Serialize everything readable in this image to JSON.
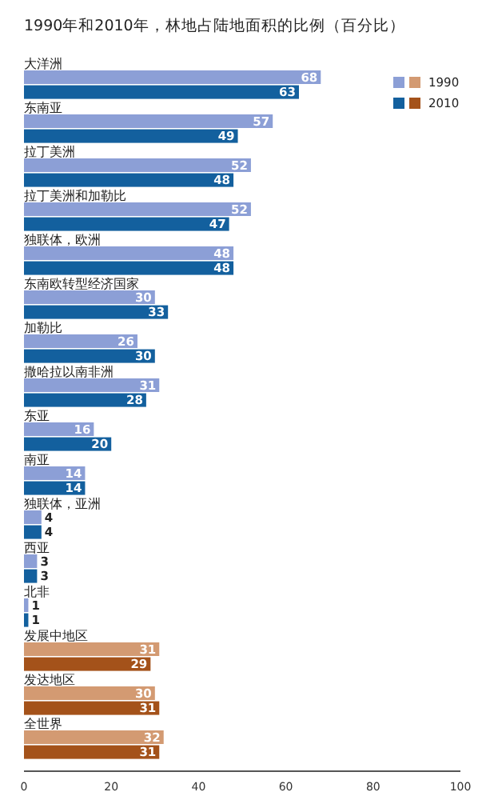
{
  "chart_data": {
    "type": "bar",
    "orientation": "horizontal",
    "title": "1990年和2010年，林地占陆地面积的比例（百分比）",
    "categories": [
      "大洋洲",
      "东南亚",
      "拉丁美洲",
      "拉丁美洲和加勒比",
      "独联体，欧洲",
      "东南欧转型经济国家",
      "加勒比",
      "撒哈拉以南非洲",
      "东亚",
      "南亚",
      "独联体，亚洲",
      "西亚",
      "北非",
      "发展中地区",
      "发达地区",
      "全世界"
    ],
    "series": [
      {
        "name": "1990",
        "color": "#8c9fd6",
        "colors": [
          "#8c9fd6",
          "#8c9fd6",
          "#8c9fd6",
          "#8c9fd6",
          "#8c9fd6",
          "#8c9fd6",
          "#8c9fd6",
          "#8c9fd6",
          "#8c9fd6",
          "#8c9fd6",
          "#8c9fd6",
          "#8c9fd6",
          "#8c9fd6",
          "#d39a72",
          "#d39a72",
          "#d39a72"
        ],
        "values": [
          68,
          57,
          52,
          52,
          48,
          30,
          26,
          31,
          16,
          14,
          4,
          3,
          1,
          31,
          30,
          32
        ]
      },
      {
        "name": "2010",
        "color": "#13609e",
        "colors": [
          "#13609e",
          "#13609e",
          "#13609e",
          "#13609e",
          "#13609e",
          "#13609e",
          "#13609e",
          "#13609e",
          "#13609e",
          "#13609e",
          "#13609e",
          "#13609e",
          "#13609e",
          "#a4521a",
          "#a4521a",
          "#a4521a"
        ],
        "values": [
          63,
          49,
          48,
          47,
          48,
          33,
          30,
          28,
          20,
          14,
          4,
          3,
          1,
          29,
          31,
          31
        ]
      }
    ],
    "xlim": [
      0,
      100
    ],
    "xticks": [
      0,
      20,
      40,
      60,
      80,
      100
    ],
    "data_labels": true,
    "legend": "top right",
    "grid": false
  }
}
